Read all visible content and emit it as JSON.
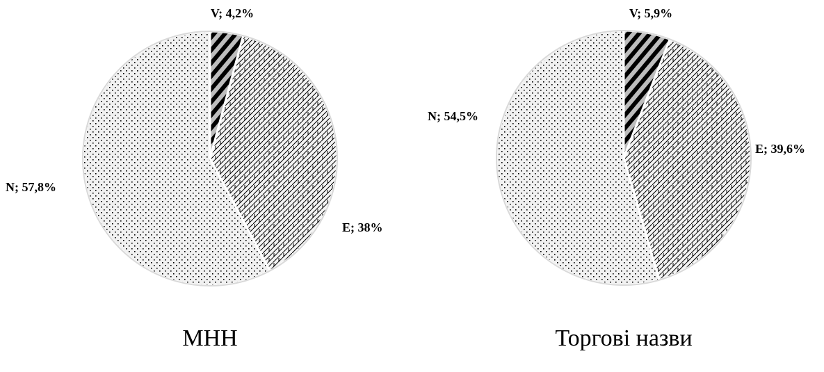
{
  "chart_data": [
    {
      "type": "pie",
      "title": "МНН",
      "slices": [
        {
          "category": "V",
          "label": "V; 4,2%",
          "value": 4.2,
          "pattern": "diagonal-stripes"
        },
        {
          "category": "E",
          "label": "E; 38%",
          "value": 38,
          "pattern": "crosshatch"
        },
        {
          "category": "N",
          "label": "N; 57,8%",
          "value": 57.8,
          "pattern": "dots"
        }
      ]
    },
    {
      "type": "pie",
      "title": "Торгові назви",
      "slices": [
        {
          "category": "V",
          "label": "V; 5,9%",
          "value": 5.9,
          "pattern": "diagonal-stripes"
        },
        {
          "category": "E",
          "label": "E; 39,6%",
          "value": 39.6,
          "pattern": "crosshatch"
        },
        {
          "category": "N",
          "label": "N; 54,5%",
          "value": 54.5,
          "pattern": "dots"
        }
      ]
    }
  ],
  "colors": {
    "background": "#ffffff",
    "ink": "#000000",
    "slice_fill": "#f2f2f2",
    "separator": "#ffffff"
  }
}
